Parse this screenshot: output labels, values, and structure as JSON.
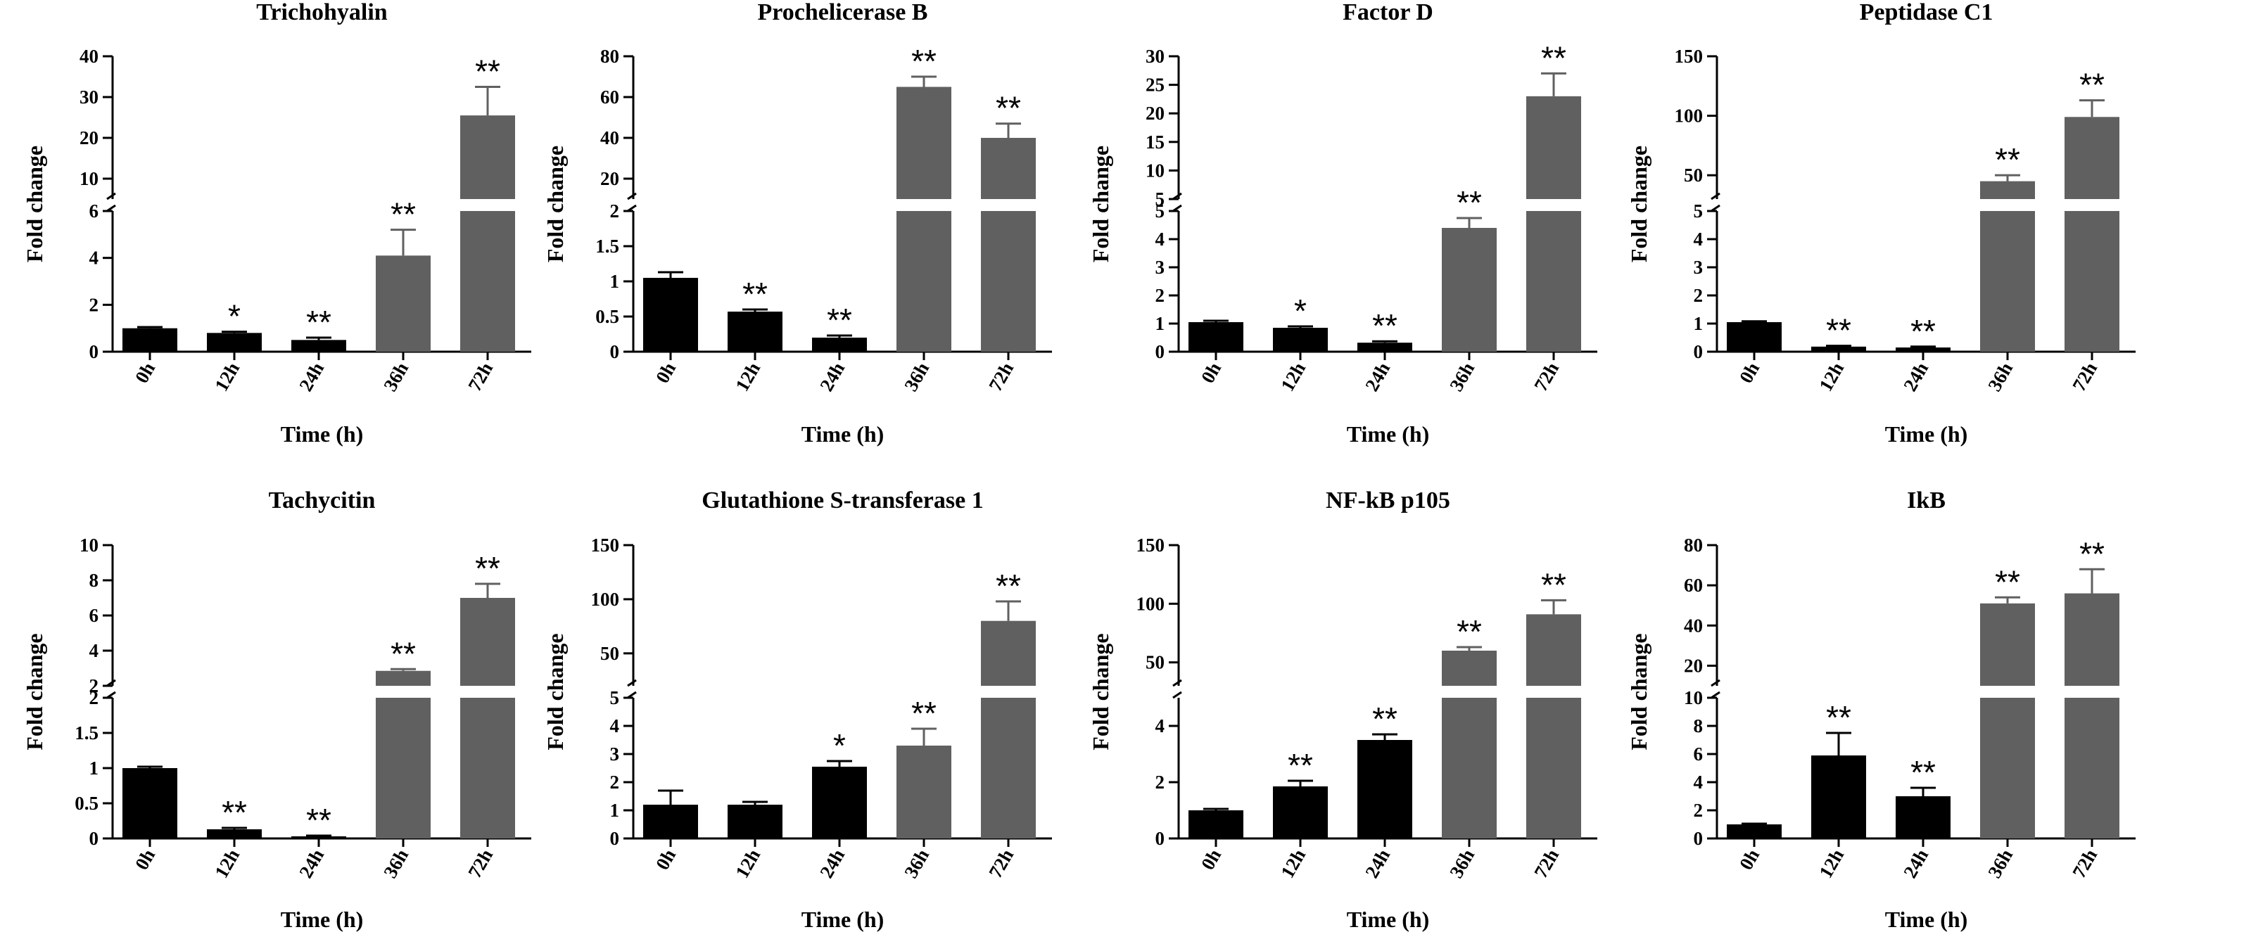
{
  "colors": {
    "early": "#000000",
    "late": "#606060",
    "axis": "#000000"
  },
  "chart_data": [
    {
      "type": "bar",
      "title": "Trichohyalin",
      "xlabel": "Time (h)",
      "ylabel": "Fold change",
      "categories": [
        "0h",
        "12h",
        "24h",
        "36h",
        "72h"
      ],
      "values": [
        1.0,
        0.8,
        0.5,
        4.1,
        25.5
      ],
      "errors": [
        0.05,
        0.05,
        0.1,
        1.1,
        7
      ],
      "significance": [
        "",
        "*",
        "**",
        "**",
        "**"
      ],
      "bar_colors": [
        "#000000",
        "#000000",
        "#000000",
        "#606060",
        "#606060"
      ],
      "lower_axis": {
        "range": [
          0,
          6
        ],
        "ticks": [
          0,
          2,
          4,
          6
        ]
      },
      "upper_axis": {
        "range": [
          5,
          40
        ],
        "ticks": [
          10,
          20,
          30,
          40
        ]
      }
    },
    {
      "type": "bar",
      "title": "Prochelicerase  B",
      "xlabel": "Time (h)",
      "ylabel": "Fold change",
      "categories": [
        "0h",
        "12h",
        "24h",
        "36h",
        "72h"
      ],
      "values": [
        1.05,
        0.57,
        0.2,
        65,
        40
      ],
      "errors": [
        0.08,
        0.03,
        0.03,
        5,
        7
      ],
      "significance": [
        "",
        "**",
        "**",
        "**",
        "**"
      ],
      "bar_colors": [
        "#000000",
        "#000000",
        "#000000",
        "#606060",
        "#606060"
      ],
      "lower_axis": {
        "range": [
          0,
          2.0
        ],
        "ticks": [
          0.0,
          0.5,
          1.0,
          1.5,
          2.0
        ]
      },
      "upper_axis": {
        "range": [
          10,
          80
        ],
        "ticks": [
          20,
          40,
          60,
          80
        ]
      }
    },
    {
      "type": "bar",
      "title": "Factor D",
      "xlabel": "Time (h)",
      "ylabel": "Fold change",
      "categories": [
        "0h",
        "12h",
        "24h",
        "36h",
        "72h"
      ],
      "values": [
        1.05,
        0.85,
        0.32,
        4.4,
        23
      ],
      "errors": [
        0.05,
        0.05,
        0.05,
        0.35,
        4
      ],
      "significance": [
        "",
        "*",
        "**",
        "**",
        "**"
      ],
      "bar_colors": [
        "#000000",
        "#000000",
        "#000000",
        "#606060",
        "#606060"
      ],
      "lower_axis": {
        "range": [
          0,
          5
        ],
        "ticks": [
          0,
          1,
          2,
          3,
          4,
          5
        ]
      },
      "upper_axis": {
        "range": [
          5,
          30
        ],
        "ticks": [
          5,
          10,
          15,
          20,
          25,
          30
        ]
      }
    },
    {
      "type": "bar",
      "title": "Peptidase C1",
      "xlabel": "Time (h)",
      "ylabel": "Fold change",
      "categories": [
        "0h",
        "12h",
        "24h",
        "36h",
        "72h"
      ],
      "values": [
        1.05,
        0.18,
        0.15,
        45,
        99
      ],
      "errors": [
        0.03,
        0.03,
        0.03,
        5,
        14
      ],
      "significance": [
        "",
        "**",
        "**",
        "**",
        "**"
      ],
      "bar_colors": [
        "#000000",
        "#000000",
        "#000000",
        "#606060",
        "#606060"
      ],
      "lower_axis": {
        "range": [
          0,
          5
        ],
        "ticks": [
          0,
          1,
          2,
          3,
          4,
          5
        ]
      },
      "upper_axis": {
        "range": [
          30,
          150
        ],
        "ticks": [
          50,
          100,
          150
        ]
      }
    },
    {
      "type": "bar",
      "title": "Tachycitin",
      "xlabel": "Time (h)",
      "ylabel": "Fold change",
      "categories": [
        "0h",
        "12h",
        "24h",
        "36h",
        "72h"
      ],
      "values": [
        1.0,
        0.13,
        0.03,
        2.85,
        7.0
      ],
      "errors": [
        0.02,
        0.02,
        0.01,
        0.1,
        0.8
      ],
      "significance": [
        "",
        "**",
        "**",
        "**",
        "**"
      ],
      "bar_colors": [
        "#000000",
        "#000000",
        "#000000",
        "#606060",
        "#606060"
      ],
      "lower_axis": {
        "range": [
          0,
          2.0
        ],
        "ticks": [
          0.0,
          0.5,
          1.0,
          1.5,
          2.0
        ]
      },
      "upper_axis": {
        "range": [
          2,
          10
        ],
        "ticks": [
          2,
          4,
          6,
          8,
          10
        ]
      }
    },
    {
      "type": "bar",
      "title": "Glutathione S-transferase 1",
      "xlabel": "Time (h)",
      "ylabel": "Fold change",
      "categories": [
        "0h",
        "12h",
        "24h",
        "36h",
        "72h"
      ],
      "values": [
        1.2,
        1.2,
        2.55,
        3.3,
        80
      ],
      "errors": [
        0.5,
        0.1,
        0.2,
        0.6,
        18
      ],
      "significance": [
        "",
        "",
        "*",
        "**",
        "**"
      ],
      "bar_colors": [
        "#000000",
        "#000000",
        "#000000",
        "#606060",
        "#606060"
      ],
      "lower_axis": {
        "range": [
          0,
          5
        ],
        "ticks": [
          0,
          1,
          2,
          3,
          4,
          5
        ]
      },
      "upper_axis": {
        "range": [
          20,
          150
        ],
        "ticks": [
          50,
          100,
          150
        ]
      }
    },
    {
      "type": "bar",
      "title": "NF-kB  p105",
      "xlabel": "Time (h)",
      "ylabel": "Fold change",
      "categories": [
        "0h",
        "12h",
        "24h",
        "36h",
        "72h"
      ],
      "values": [
        1.0,
        1.85,
        3.5,
        60,
        91
      ],
      "errors": [
        0.05,
        0.2,
        0.2,
        3,
        12
      ],
      "significance": [
        "",
        "**",
        "**",
        "**",
        "**"
      ],
      "bar_colors": [
        "#000000",
        "#000000",
        "#000000",
        "#606060",
        "#606060"
      ],
      "lower_axis": {
        "range": [
          0,
          5
        ],
        "ticks": [
          0,
          2,
          4
        ]
      },
      "upper_axis": {
        "range": [
          30,
          150
        ],
        "ticks": [
          50,
          100,
          150
        ]
      }
    },
    {
      "type": "bar",
      "title": "IkB",
      "xlabel": "Time (h)",
      "ylabel": "Fold change",
      "categories": [
        "0h",
        "12h",
        "24h",
        "36h",
        "72h"
      ],
      "values": [
        1.0,
        5.9,
        3.0,
        51,
        56
      ],
      "errors": [
        0.05,
        1.6,
        0.6,
        3,
        12
      ],
      "significance": [
        "",
        "**",
        "**",
        "**",
        "**"
      ],
      "bar_colors": [
        "#000000",
        "#000000",
        "#000000",
        "#606060",
        "#606060"
      ],
      "lower_axis": {
        "range": [
          0,
          10
        ],
        "ticks": [
          0,
          2,
          4,
          6,
          8,
          10
        ]
      },
      "upper_axis": {
        "range": [
          10,
          80
        ],
        "ticks": [
          20,
          40,
          60,
          80
        ]
      }
    }
  ]
}
